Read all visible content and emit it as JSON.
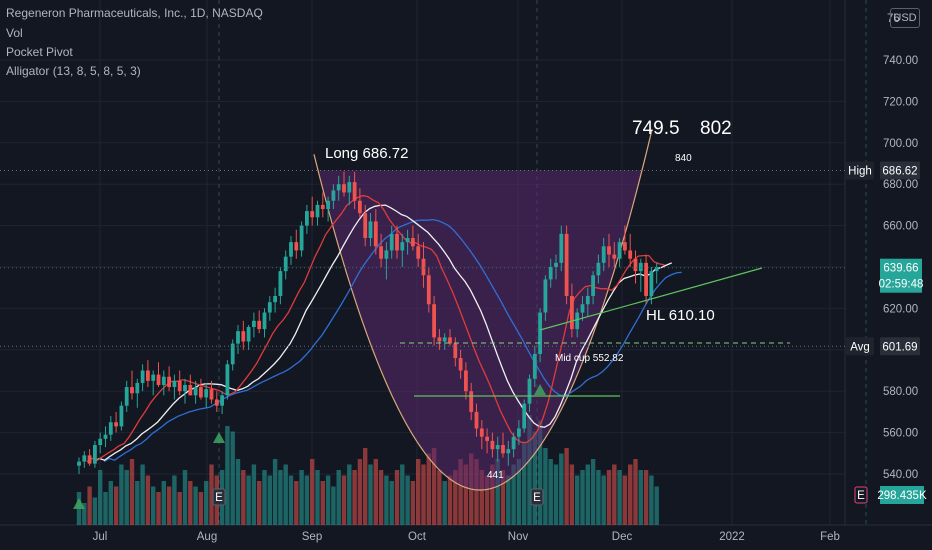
{
  "legend": {
    "symbol": "Regeneron Pharmaceuticals, Inc., 1D, NASDAQ",
    "vol": "Vol",
    "pocket_pivot": "Pocket Pivot",
    "alligator": "Alligator (13, 8, 5, 8, 5, 3)"
  },
  "currency_button": "USD",
  "colors": {
    "background": "#131722",
    "up": "#26a69a",
    "down": "#ef5350",
    "cup_fill": "#5b2a6e",
    "cup_outline": "#d9a87a",
    "ma_red": "#e03b3b",
    "ma_white": "#f0f0f0",
    "ma_blue": "#2f6fd6",
    "trend_green": "#5ec45e",
    "dashed_green": "#7ed67e"
  },
  "annotations": {
    "long": "Long 686.72",
    "target1": "749.5",
    "target2": "802",
    "target3": "840",
    "hl": "HL 610.10",
    "mid_cup": "Mid cup 552.82",
    "low": "441"
  },
  "price_tags": {
    "high_label": "High",
    "high_value": "686.62",
    "last_value": "639.66",
    "countdown": "02:59:48",
    "avg_label": "Avg",
    "avg_value": "601.69",
    "volume_value": "298.435K",
    "earnings_letter": "E"
  },
  "chart_data": {
    "type": "candlestick",
    "x_labels": [
      "Jul",
      "Aug",
      "Sep",
      "Oct",
      "Nov",
      "Dec",
      "2022",
      "Feb"
    ],
    "y_ticks": [
      540,
      560,
      580,
      600,
      620,
      640,
      660,
      680,
      700,
      720,
      740
    ],
    "y_partial_top_label": "76",
    "ylim": [
      527,
      762
    ],
    "high_line": 686.62,
    "avg_line": 601.69,
    "last_price": 639.66,
    "earnings_markers": [
      "Aug",
      "Nov"
    ],
    "pocket_pivot_markers": [
      "late Jun",
      "early Aug",
      "early Nov"
    ],
    "candles_ohlc": [
      [
        544,
        548,
        540,
        546
      ],
      [
        546,
        551,
        543,
        549
      ],
      [
        549,
        552,
        544,
        545
      ],
      [
        545,
        556,
        543,
        554
      ],
      [
        554,
        560,
        550,
        557
      ],
      [
        557,
        563,
        553,
        559
      ],
      [
        559,
        568,
        556,
        565
      ],
      [
        565,
        570,
        560,
        563
      ],
      [
        563,
        575,
        561,
        573
      ],
      [
        573,
        585,
        570,
        582
      ],
      [
        582,
        590,
        576,
        579
      ],
      [
        579,
        586,
        572,
        584
      ],
      [
        584,
        593,
        580,
        590
      ],
      [
        590,
        595,
        582,
        585
      ],
      [
        585,
        590,
        578,
        588
      ],
      [
        588,
        594,
        582,
        583
      ],
      [
        583,
        590,
        578,
        587
      ],
      [
        587,
        592,
        580,
        582
      ],
      [
        582,
        588,
        576,
        585
      ],
      [
        585,
        590,
        578,
        580
      ],
      [
        580,
        586,
        574,
        583
      ],
      [
        583,
        588,
        578,
        578
      ],
      [
        578,
        585,
        574,
        582
      ],
      [
        582,
        586,
        576,
        577
      ],
      [
        577,
        584,
        572,
        581
      ],
      [
        581,
        585,
        574,
        576
      ],
      [
        576,
        580,
        570,
        573
      ],
      [
        573,
        580,
        569,
        578
      ],
      [
        578,
        595,
        576,
        593
      ],
      [
        593,
        605,
        590,
        603
      ],
      [
        603,
        612,
        598,
        609
      ],
      [
        609,
        614,
        600,
        604
      ],
      [
        604,
        612,
        600,
        611
      ],
      [
        611,
        618,
        606,
        614
      ],
      [
        614,
        619,
        608,
        610
      ],
      [
        610,
        620,
        606,
        618
      ],
      [
        618,
        626,
        614,
        623
      ],
      [
        623,
        630,
        618,
        626
      ],
      [
        626,
        640,
        622,
        638
      ],
      [
        638,
        648,
        634,
        645
      ],
      [
        645,
        655,
        641,
        652
      ],
      [
        652,
        658,
        644,
        648
      ],
      [
        648,
        662,
        645,
        660
      ],
      [
        660,
        670,
        656,
        667
      ],
      [
        667,
        674,
        660,
        664
      ],
      [
        664,
        672,
        660,
        670
      ],
      [
        670,
        676,
        664,
        668
      ],
      [
        668,
        674,
        662,
        672
      ],
      [
        672,
        680,
        668,
        677
      ],
      [
        677,
        684,
        672,
        680
      ],
      [
        680,
        686,
        674,
        676
      ],
      [
        676,
        684,
        670,
        681
      ],
      [
        681,
        686,
        668,
        672
      ],
      [
        672,
        678,
        664,
        666
      ],
      [
        666,
        670,
        650,
        654
      ],
      [
        654,
        666,
        650,
        662
      ],
      [
        662,
        668,
        646,
        650
      ],
      [
        650,
        656,
        640,
        644
      ],
      [
        644,
        652,
        634,
        648
      ],
      [
        648,
        660,
        644,
        656
      ],
      [
        656,
        660,
        644,
        648
      ],
      [
        648,
        656,
        640,
        652
      ],
      [
        652,
        658,
        646,
        654
      ],
      [
        654,
        660,
        648,
        650
      ],
      [
        650,
        656,
        640,
        644
      ],
      [
        644,
        652,
        630,
        636
      ],
      [
        636,
        640,
        618,
        622
      ],
      [
        622,
        626,
        602,
        606
      ],
      [
        606,
        610,
        600,
        604
      ],
      [
        604,
        608,
        600,
        606
      ],
      [
        606,
        610,
        602,
        603
      ],
      [
        603,
        606,
        592,
        596
      ],
      [
        596,
        600,
        586,
        590
      ],
      [
        590,
        594,
        576,
        580
      ],
      [
        580,
        584,
        566,
        570
      ],
      [
        570,
        574,
        558,
        562
      ],
      [
        562,
        566,
        552,
        558
      ],
      [
        558,
        562,
        550,
        556
      ],
      [
        556,
        560,
        548,
        552
      ],
      [
        552,
        558,
        546,
        554
      ],
      [
        554,
        560,
        548,
        550
      ],
      [
        550,
        556,
        544,
        552
      ],
      [
        552,
        560,
        548,
        558
      ],
      [
        558,
        566,
        554,
        562
      ],
      [
        562,
        576,
        560,
        574
      ],
      [
        574,
        588,
        570,
        586
      ],
      [
        586,
        602,
        582,
        598
      ],
      [
        598,
        620,
        594,
        618
      ],
      [
        618,
        636,
        614,
        634
      ],
      [
        634,
        644,
        630,
        640
      ],
      [
        640,
        646,
        634,
        642
      ],
      [
        642,
        660,
        638,
        656
      ],
      [
        656,
        660,
        622,
        626
      ],
      [
        626,
        632,
        606,
        610
      ],
      [
        610,
        620,
        606,
        618
      ],
      [
        618,
        626,
        614,
        622
      ],
      [
        622,
        630,
        616,
        626
      ],
      [
        626,
        638,
        622,
        636
      ],
      [
        636,
        646,
        632,
        642
      ],
      [
        642,
        654,
        638,
        650
      ],
      [
        650,
        656,
        640,
        646
      ],
      [
        646,
        652,
        640,
        644
      ],
      [
        644,
        654,
        640,
        652
      ],
      [
        652,
        660,
        646,
        648
      ],
      [
        648,
        656,
        640,
        644
      ],
      [
        644,
        648,
        632,
        638
      ],
      [
        638,
        644,
        628,
        642
      ],
      [
        642,
        646,
        622,
        626
      ],
      [
        626,
        640,
        622,
        638
      ],
      [
        638,
        642,
        632,
        640
      ]
    ],
    "volume_relative": [
      0.3,
      0.2,
      0.35,
      0.25,
      0.5,
      0.3,
      0.4,
      0.35,
      0.55,
      0.5,
      0.6,
      0.4,
      0.55,
      0.45,
      0.35,
      0.3,
      0.4,
      0.35,
      0.45,
      0.3,
      0.5,
      0.4,
      0.35,
      0.3,
      0.4,
      0.55,
      0.45,
      0.5,
      0.9,
      0.85,
      0.6,
      0.5,
      0.45,
      0.55,
      0.4,
      0.5,
      0.45,
      0.6,
      0.5,
      0.55,
      0.45,
      0.4,
      0.5,
      0.45,
      0.6,
      0.5,
      0.4,
      0.45,
      0.35,
      0.5,
      0.45,
      0.55,
      0.5,
      0.6,
      0.7,
      0.55,
      0.6,
      0.5,
      0.45,
      0.4,
      0.5,
      0.55,
      0.45,
      0.4,
      0.6,
      0.55,
      0.65,
      0.7,
      0.5,
      0.4,
      0.45,
      0.5,
      0.6,
      0.55,
      0.65,
      0.6,
      0.5,
      0.45,
      0.55,
      0.6,
      0.5,
      0.45,
      0.55,
      0.6,
      0.75,
      1.0,
      0.85,
      0.95,
      0.7,
      0.6,
      0.55,
      0.65,
      0.7,
      0.55,
      0.45,
      0.5,
      0.55,
      0.6,
      0.5,
      0.45,
      0.5,
      0.55,
      0.5,
      0.45,
      0.55,
      0.6,
      0.5,
      0.5,
      0.45,
      0.35
    ]
  }
}
